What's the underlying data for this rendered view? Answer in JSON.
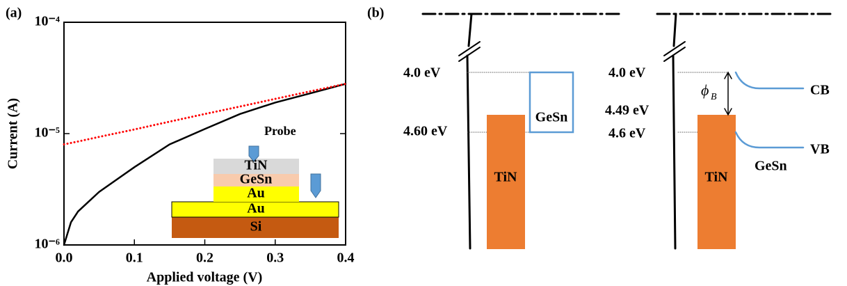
{
  "chart_data": {
    "type": "line",
    "panel_label": "(a)",
    "xlabel": "Applied voltage (V)",
    "ylabel": "Current (A)",
    "x": [
      0,
      0.01,
      0.02,
      0.05,
      0.1,
      0.15,
      0.2,
      0.25,
      0.3,
      0.35,
      0.4
    ],
    "series": [
      {
        "color": "#000000",
        "style": "solid",
        "values": [
          1e-06,
          1.6e-06,
          2e-06,
          3e-06,
          5e-06,
          8e-06,
          1.1e-05,
          1.5e-05,
          1.9e-05,
          2.3e-05,
          2.8e-05
        ]
      },
      {
        "color": "#ff0000",
        "style": "dotted",
        "values": [
          8e-06,
          8.25e-06,
          8.5e-06,
          9.35e-06,
          1.09e-05,
          1.28e-05,
          1.5e-05,
          1.75e-05,
          2.05e-05,
          2.4e-05,
          2.8e-05
        ]
      }
    ],
    "xlim": [
      0,
      0.4
    ],
    "ylim": [
      1e-06,
      0.0001
    ],
    "log_y": true,
    "xticks": [
      {
        "value": 0,
        "label": "0.0"
      },
      0.1,
      0.2,
      0.3,
      0.4
    ],
    "yticks": [
      {
        "value": 1e-06,
        "label": "10⁻⁶"
      },
      {
        "value": 1e-05,
        "label": "10⁻⁵"
      },
      {
        "value": 0.0001,
        "label": "10⁻⁴"
      }
    ],
    "inset_labels": [
      "Probe",
      "TiN",
      "GeSn",
      "Au",
      "Au",
      "Si"
    ]
  },
  "diagram": {
    "panel_label": "(b)",
    "left": {
      "level_top": "4.0 eV",
      "level_bottom": "4.60 eV",
      "metal": "TiN",
      "semiconductor": "GeSn"
    },
    "right": {
      "level_top": "4.0 eV",
      "level_mid": "4.49 eV",
      "level_bottom": "4.6 eV",
      "barrier": {
        "symbol": "ϕ",
        "subscript": "B"
      },
      "cb": "CB",
      "vb": "VB",
      "metal": "TiN",
      "semiconductor": "GeSn"
    }
  }
}
